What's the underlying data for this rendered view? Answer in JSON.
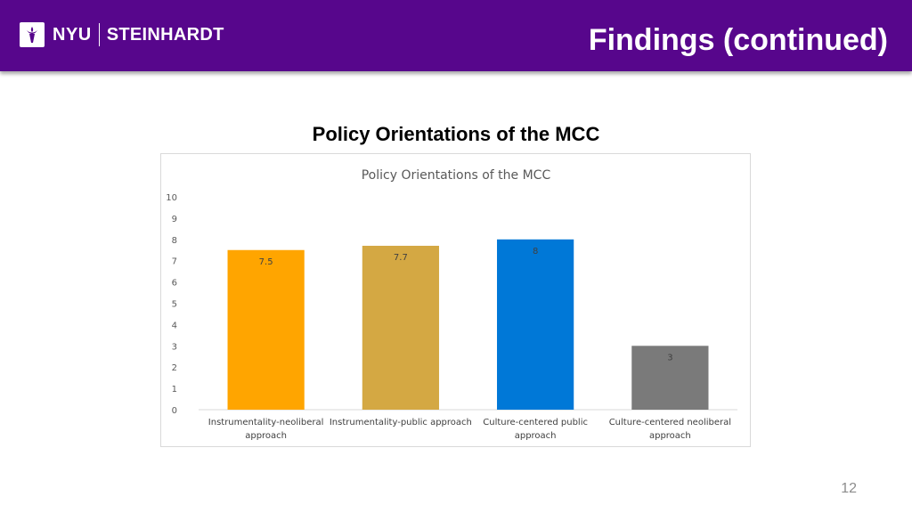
{
  "header": {
    "logo_nyu": "NYU",
    "logo_school": "STEINHARDT",
    "title": "Findings (continued)",
    "background_color": "#57068c"
  },
  "chart_heading": "Policy Orientations of the MCC",
  "page_number": "12",
  "chart_data": {
    "type": "bar",
    "title": "Policy Orientations of the MCC",
    "xlabel": "",
    "ylabel": "",
    "ylim": [
      0,
      10
    ],
    "yticks": [
      "0",
      "1",
      "2",
      "3",
      "4",
      "5",
      "6",
      "7",
      "8",
      "9",
      "10"
    ],
    "categories": [
      [
        "Instrumentality-neoliberal",
        "approach"
      ],
      [
        "Instrumentality-public approach"
      ],
      [
        "Culture-centered public",
        "approach"
      ],
      [
        "Culture-centered neoliberal",
        "approach"
      ]
    ],
    "values": [
      7.5,
      7.7,
      8,
      3
    ],
    "value_labels": [
      "7.5",
      "7.7",
      "8",
      "3"
    ],
    "colors": [
      "#ffa500",
      "#d4a843",
      "#0078d7",
      "#7a7a7a"
    ],
    "grid": false,
    "legend": "none"
  }
}
